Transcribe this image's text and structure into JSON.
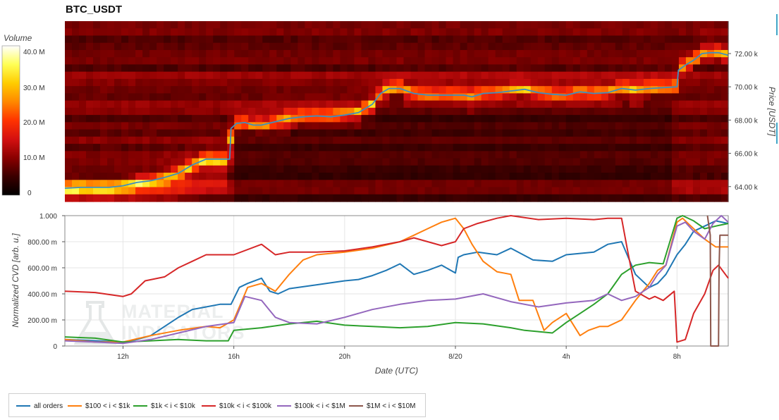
{
  "title": "BTC_USDT",
  "colorbar": {
    "title": "Volume",
    "ticks": [
      "40.0 M",
      "30.0 M",
      "20.0 M",
      "10.0 M",
      "0"
    ],
    "tick_values": [
      40,
      30,
      20,
      10,
      0
    ],
    "max": 44,
    "colors": [
      "#000000",
      "#3a0000",
      "#8a0000",
      "#d41010",
      "#ff3300",
      "#ff8800",
      "#ffcc00",
      "#ffff55",
      "#ffffff"
    ]
  },
  "chart_data": [
    {
      "type": "heatmap",
      "title": "BTC_USDT",
      "ylabel": "Price [USDT]",
      "y_ticks": [
        "72.00 k",
        "70.00 k",
        "68.00 k",
        "66.00 k",
        "64.00 k"
      ],
      "y_tick_values": [
        72000,
        70000,
        68000,
        66000,
        64000
      ],
      "ylim": [
        63100,
        73950
      ],
      "xlim": [
        9.9,
        33.85
      ],
      "overlay_color": "#3d8fc2",
      "price_line": {
        "x": [
          9.9,
          10.5,
          11,
          11.5,
          12,
          12.5,
          13,
          13.5,
          14,
          14.5,
          15,
          15.5,
          15.85,
          15.9,
          16.1,
          16.4,
          16.7,
          17,
          17.5,
          18,
          18.5,
          19,
          19.5,
          20,
          20.5,
          21,
          21.3,
          21.6,
          22,
          22.5,
          23,
          23.5,
          24,
          24.3,
          24.6,
          25,
          25.5,
          26,
          26.5,
          27,
          27.5,
          28,
          28.5,
          29,
          29.5,
          30,
          30.5,
          31,
          31.5,
          32,
          32.05,
          32.3,
          32.6,
          32.9,
          33.2,
          33.5,
          33.85
        ],
        "y": [
          63900,
          63950,
          63950,
          63950,
          64050,
          64250,
          64350,
          64550,
          64800,
          65300,
          65650,
          65650,
          65650,
          67500,
          67800,
          67850,
          67700,
          67700,
          67900,
          68100,
          68200,
          68250,
          68200,
          68300,
          68450,
          68950,
          69600,
          69900,
          69900,
          69600,
          69500,
          69500,
          69500,
          69500,
          69400,
          69600,
          69650,
          69750,
          69850,
          69650,
          69550,
          69500,
          69700,
          69600,
          69650,
          69900,
          69800,
          69900,
          69950,
          70000,
          71000,
          71300,
          71600,
          72000,
          72050,
          72050,
          71900
        ]
      }
    },
    {
      "type": "line",
      "title": "",
      "xlabel": "Date (UTC)",
      "ylabel": "Normalized CVD [arb. u.]",
      "x_ticks": [
        "12h",
        "16h",
        "20h",
        "8/20",
        "4h",
        "8h"
      ],
      "x_tick_values": [
        12,
        16,
        20,
        24,
        28,
        32
      ],
      "y_ticks": [
        "1.000",
        "800.00 m",
        "600.00 m",
        "400.00 m",
        "200.00 m",
        "0"
      ],
      "y_tick_values": [
        1,
        0.8,
        0.6,
        0.4,
        0.2,
        0
      ],
      "xlim": [
        9.9,
        33.85
      ],
      "ylim": [
        0,
        1
      ],
      "grid": true,
      "legend_position": "bottom",
      "series": [
        {
          "name": "all orders",
          "color": "#1f77b4",
          "x": [
            9.9,
            11,
            12,
            12.5,
            13,
            13.5,
            14,
            14.5,
            15,
            15.5,
            15.9,
            16.2,
            16.5,
            17,
            17.3,
            17.6,
            18,
            19,
            20,
            20.5,
            21,
            21.5,
            22,
            22.5,
            23,
            23.5,
            24,
            24.1,
            24.3,
            24.8,
            25.5,
            26,
            26.8,
            27.5,
            28,
            29,
            29.5,
            30,
            30.5,
            31,
            31.3,
            31.6,
            32,
            32.3,
            32.6,
            33,
            33.4,
            33.85
          ],
          "y": [
            0.05,
            0.04,
            0.03,
            0.05,
            0.08,
            0.15,
            0.22,
            0.28,
            0.3,
            0.32,
            0.32,
            0.45,
            0.48,
            0.52,
            0.42,
            0.4,
            0.44,
            0.47,
            0.5,
            0.51,
            0.54,
            0.58,
            0.63,
            0.55,
            0.58,
            0.62,
            0.56,
            0.68,
            0.7,
            0.72,
            0.7,
            0.75,
            0.66,
            0.65,
            0.7,
            0.72,
            0.78,
            0.8,
            0.55,
            0.45,
            0.48,
            0.55,
            0.7,
            0.78,
            0.88,
            0.92,
            0.96,
            0.94
          ]
        },
        {
          "name": "$100 < i < $1k",
          "color": "#ff7f0e",
          "x": [
            9.9,
            11,
            12,
            13,
            14,
            15,
            15.5,
            16,
            16.5,
            17,
            17.5,
            18,
            18.5,
            19,
            20,
            21,
            22,
            22.5,
            23,
            23.5,
            24,
            24.3,
            24.6,
            25,
            25.5,
            26,
            26.3,
            26.8,
            27.2,
            27.5,
            28,
            28.5,
            28.8,
            29.2,
            29.5,
            30,
            30.5,
            31,
            31.3,
            31.6,
            32,
            32.2,
            32.5,
            33,
            33.4,
            33.85
          ],
          "y": [
            0.05,
            0.03,
            0.03,
            0.08,
            0.12,
            0.15,
            0.14,
            0.2,
            0.45,
            0.48,
            0.42,
            0.55,
            0.66,
            0.7,
            0.72,
            0.75,
            0.8,
            0.85,
            0.9,
            0.95,
            0.98,
            0.9,
            0.78,
            0.65,
            0.57,
            0.55,
            0.35,
            0.35,
            0.12,
            0.18,
            0.25,
            0.08,
            0.12,
            0.15,
            0.15,
            0.2,
            0.35,
            0.48,
            0.58,
            0.62,
            0.95,
            0.98,
            0.92,
            0.82,
            0.76,
            0.76
          ]
        },
        {
          "name": "$1k < i < $10k",
          "color": "#2ca02c",
          "x": [
            9.9,
            11,
            12,
            13,
            14,
            15,
            15.8,
            16,
            17,
            18,
            19,
            20,
            21,
            22,
            23,
            24,
            25,
            26,
            26.5,
            27,
            27.5,
            28,
            28.5,
            29,
            29.5,
            30,
            30.5,
            31,
            31.5,
            32,
            32.2,
            32.6,
            33,
            33.4,
            33.85
          ],
          "y": [
            0.07,
            0.06,
            0.03,
            0.04,
            0.05,
            0.04,
            0.04,
            0.12,
            0.14,
            0.17,
            0.19,
            0.16,
            0.15,
            0.14,
            0.15,
            0.18,
            0.17,
            0.14,
            0.12,
            0.11,
            0.1,
            0.18,
            0.25,
            0.32,
            0.4,
            0.55,
            0.62,
            0.64,
            0.63,
            0.98,
            1.0,
            0.96,
            0.9,
            0.92,
            0.94
          ]
        },
        {
          "name": "$10k < i < $100k",
          "color": "#d62728",
          "x": [
            9.9,
            11,
            12,
            12.3,
            12.8,
            13.5,
            14,
            14.5,
            15,
            16,
            17,
            17.5,
            18,
            19,
            20,
            21,
            22,
            22.5,
            23,
            23.5,
            24,
            24.3,
            24.8,
            25.5,
            26,
            27,
            28,
            29,
            29.5,
            30,
            30.2,
            30.5,
            31,
            31.2,
            31.5,
            31.9,
            32,
            32.3,
            32.6,
            33,
            33.3,
            33.5,
            33.85
          ],
          "y": [
            0.42,
            0.41,
            0.38,
            0.4,
            0.5,
            0.53,
            0.6,
            0.65,
            0.7,
            0.7,
            0.78,
            0.7,
            0.72,
            0.72,
            0.73,
            0.76,
            0.8,
            0.83,
            0.8,
            0.77,
            0.8,
            0.9,
            0.94,
            0.98,
            1.0,
            0.97,
            0.98,
            0.97,
            0.98,
            0.98,
            0.75,
            0.42,
            0.36,
            0.38,
            0.35,
            0.42,
            0.03,
            0.05,
            0.25,
            0.4,
            0.58,
            0.62,
            0.52
          ]
        },
        {
          "name": "$100k < i < $1M",
          "color": "#9467bd",
          "x": [
            9.9,
            11,
            12,
            13,
            14,
            15,
            16,
            16.4,
            17,
            17.5,
            18,
            19,
            20,
            21,
            22,
            23,
            24,
            25,
            26,
            27,
            28,
            29,
            29.5,
            30,
            30.5,
            31,
            31.3,
            31.6,
            32,
            32.3,
            32.6,
            33,
            33.3,
            33.6,
            33.85
          ],
          "y": [
            0.04,
            0.03,
            0.02,
            0.05,
            0.1,
            0.15,
            0.18,
            0.38,
            0.35,
            0.22,
            0.18,
            0.17,
            0.22,
            0.28,
            0.32,
            0.35,
            0.36,
            0.4,
            0.34,
            0.3,
            0.33,
            0.35,
            0.4,
            0.35,
            0.38,
            0.45,
            0.55,
            0.62,
            0.92,
            0.95,
            0.88,
            0.82,
            0.94,
            1.0,
            0.95
          ]
        },
        {
          "name": "$1M < i < $10M",
          "color": "#8c564b",
          "x": [
            33.1,
            33.2,
            33.22,
            33.5,
            33.52,
            33.55,
            33.85
          ],
          "y": [
            1.0,
            0.85,
            0.0,
            0.0,
            0.6,
            0.85,
            0.85
          ]
        }
      ]
    }
  ],
  "watermark": {
    "line1": "MATERIAL",
    "line2": "INDICATORS"
  }
}
